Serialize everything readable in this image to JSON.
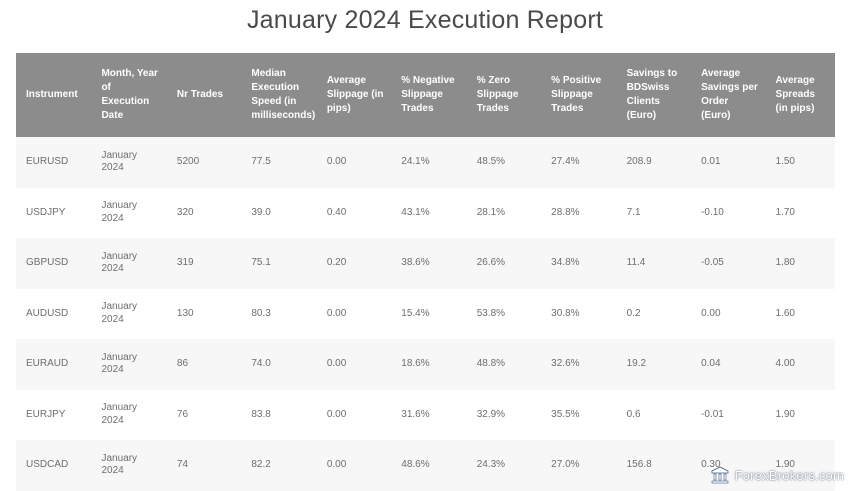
{
  "title": "January 2024 Execution Report",
  "table": {
    "headers": [
      "Instrument",
      "Month, Year of Execution Date",
      "Nr Trades",
      "Median Execution Speed (in milliseconds)",
      "Average Slippage (in pips)",
      "% Negative Slippage Trades",
      "% Zero Slippage Trades",
      "% Positive Slippage Trades",
      "Savings to BDSwiss Clients (Euro)",
      "Average Savings per Order (Euro)",
      "Average Spreads (in pips)"
    ],
    "rows": [
      [
        "EURUSD",
        "January 2024",
        "5200",
        "77.5",
        "0.00",
        "24.1%",
        "48.5%",
        "27.4%",
        "208.9",
        "0.01",
        "1.50"
      ],
      [
        "USDJPY",
        "January 2024",
        "320",
        "39.0",
        "0.40",
        "43.1%",
        "28.1%",
        "28.8%",
        "7.1",
        "-0.10",
        "1.70"
      ],
      [
        "GBPUSD",
        "January 2024",
        "319",
        "75.1",
        "0.20",
        "38.6%",
        "26.6%",
        "34.8%",
        "11.4",
        "-0.05",
        "1.80"
      ],
      [
        "AUDUSD",
        "January 2024",
        "130",
        "80.3",
        "0.00",
        "15.4%",
        "53.8%",
        "30.8%",
        "0.2",
        "0.00",
        "1.60"
      ],
      [
        "EURAUD",
        "January 2024",
        "86",
        "74.0",
        "0.00",
        "18.6%",
        "48.8%",
        "32.6%",
        "19.2",
        "0.04",
        "4.00"
      ],
      [
        "EURJPY",
        "January 2024",
        "76",
        "83.8",
        "0.00",
        "31.6%",
        "32.9%",
        "35.5%",
        "0.6",
        "-0.01",
        "1.90"
      ],
      [
        "USDCAD",
        "January 2024",
        "74",
        "82.2",
        "0.00",
        "48.6%",
        "24.3%",
        "27.0%",
        "156.8",
        "0.30",
        "1.90"
      ]
    ]
  },
  "watermark": {
    "text": "ForexBrokers.com",
    "icon": "forexbrokers-logo-icon"
  },
  "colors": {
    "header_bg": "#8c8c8c",
    "row_alt_bg": "#f7f7f7",
    "text": "#6e6e6e",
    "title": "#4a4a4a"
  }
}
